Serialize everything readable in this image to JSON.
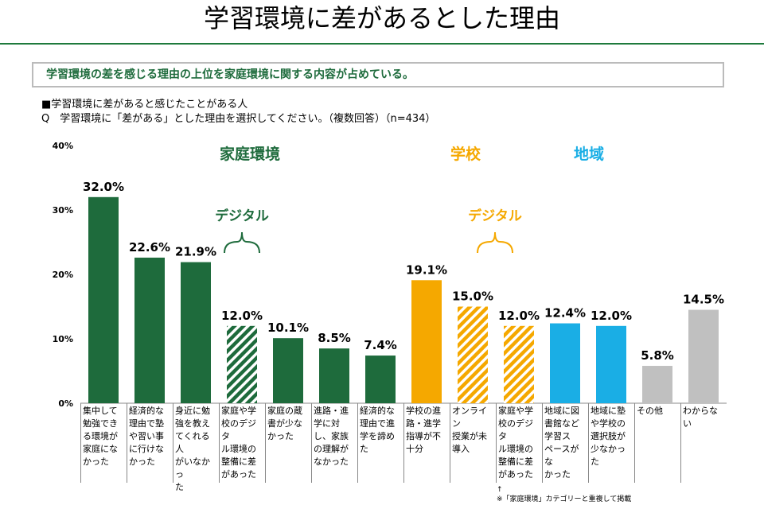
{
  "title": "学習環境に差があるとした理由",
  "summary": "学習環境の差を感じる理由の上位を家庭環境に関する内容が占めている。",
  "note1": "■学習環境に差があると感じたことがある人",
  "note2": "Q　学習環境に「差がある」とした理由を選択してください。（複数回答）（n=434）",
  "footnote": "↑\n※「家庭環境」カテゴリーと重複して掲載",
  "colors": {
    "home": "#1e6b3c",
    "school": "#f5a800",
    "region": "#1aaee5",
    "other": "#c0c0c0"
  },
  "chart_data": {
    "type": "bar",
    "ylim": [
      0,
      40
    ],
    "yticks": [
      "0%",
      "10%",
      "20%",
      "30%",
      "40%"
    ],
    "groups": [
      {
        "name": "家庭環境",
        "color": "#1e6b3c"
      },
      {
        "name": "学校",
        "color": "#f5a800"
      },
      {
        "name": "地域",
        "color": "#1aaee5"
      }
    ],
    "digital_label": "デジタル",
    "categories": [
      "集中して\n勉強でき\nる環境が\n家庭にな\nかった",
      "経済的な\n理由で塾\nや習い事\nに行けな\nかった",
      "身近に勉\n強を教え\nてくれる人\nがいなかっ\nた",
      "家庭や学\n校のデジタ\nル環境の\n整備に差\nがあった",
      "家庭の蔵\n書が少な\nかった",
      "進路・進\n学に対\nし、家族\nの理解が\nなかった",
      "経済的な\n理由で進\n学を諦め\nた",
      "学校の進\n路・進学\n指導が不\n十分",
      "オンライン\n授業が未\n導入",
      "家庭や学\n校のデジタ\nル環境の\n整備に差\nがあった",
      "地域に図\n書館など\n学習ス\nペースがな\nかった",
      "地域に塾\nや学校の\n選択肢が\n少なかった",
      "その他",
      "わからない"
    ],
    "values": [
      32.0,
      22.6,
      21.9,
      12.0,
      10.1,
      8.5,
      7.4,
      19.1,
      15.0,
      12.0,
      12.4,
      12.0,
      5.8,
      14.5
    ],
    "value_labels": [
      "32.0%",
      "22.6%",
      "21.9%",
      "12.0%",
      "10.1%",
      "8.5%",
      "7.4%",
      "19.1%",
      "15.0%",
      "12.0%",
      "12.4%",
      "12.0%",
      "5.8%",
      "14.5%"
    ],
    "group_of": [
      "home",
      "home",
      "home",
      "home",
      "home",
      "home",
      "home",
      "school",
      "school",
      "school",
      "region",
      "region",
      "other",
      "other"
    ],
    "hatched": [
      false,
      false,
      false,
      true,
      false,
      false,
      false,
      false,
      true,
      true,
      false,
      false,
      false,
      false
    ]
  }
}
